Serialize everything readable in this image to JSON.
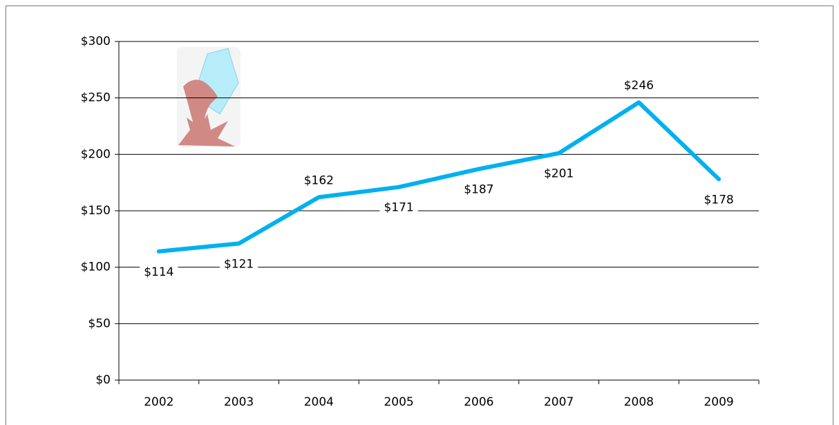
{
  "chart_data": {
    "type": "line",
    "categories": [
      "2002",
      "2003",
      "2004",
      "2005",
      "2006",
      "2007",
      "2008",
      "2009"
    ],
    "series": [
      {
        "color": "#00b0f0",
        "values": [
          114,
          121,
          162,
          171,
          187,
          201,
          246,
          178
        ],
        "value_labels": [
          "$114",
          "$121",
          "$162",
          "$171",
          "$187",
          "$201",
          "$246",
          "$178"
        ]
      }
    ],
    "ylim": [
      0,
      300
    ],
    "yticks": [
      {
        "value": 0,
        "label": "$0"
      },
      {
        "value": 50,
        "label": "$50"
      },
      {
        "value": 100,
        "label": "$100"
      },
      {
        "value": 150,
        "label": "$150"
      },
      {
        "value": 200,
        "label": "$200"
      },
      {
        "value": 250,
        "label": "$250"
      },
      {
        "value": 300,
        "label": "$300"
      }
    ],
    "grid": true
  }
}
